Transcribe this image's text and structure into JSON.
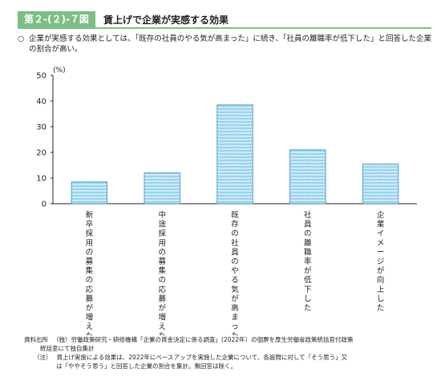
{
  "header": {
    "tag": "第２-(２)-７図",
    "title": "賃上げで企業が実感する効果"
  },
  "lead": {
    "mark": "○",
    "text": "企業が実感する効果としては、「既存の社員のやる気が高まった」に続き、「社員の離職率が低下した」と回答した企業の割合が高い。"
  },
  "chart_data": {
    "type": "bar",
    "unit": "(%)",
    "categories": [
      "新卒採用の募集の応募が増えた",
      "中途採用の募集の応募が増えた",
      "既存の社員のやる気が高まった",
      "社員の離職率が低下した",
      "企業イメージが向上した"
    ],
    "values": [
      8.5,
      12,
      38.5,
      21,
      15.5
    ],
    "ylim": [
      0,
      50
    ],
    "yticks": [
      0,
      10,
      20,
      30,
      40,
      50
    ],
    "bar_color": "#8fd0ee",
    "bar_border": "#3a8cc0"
  },
  "notes": {
    "source_head": "資料出所",
    "source_text": "（独）労働政策研究・研修機構「企業の賃金決定に係る調査」(2022年）の個票を厚生労働省政策統括官付政策",
    "source_text2": "統括室にて独自集計",
    "note_head": "（注）",
    "note_text": "賃上げ実施による効果は、2022年にベースアップを実施した企業について、各設問に対して「そう思う」又",
    "note_text2": "は「ややそう思う」と回答した企業の割合を集計。無回答は除く。"
  }
}
